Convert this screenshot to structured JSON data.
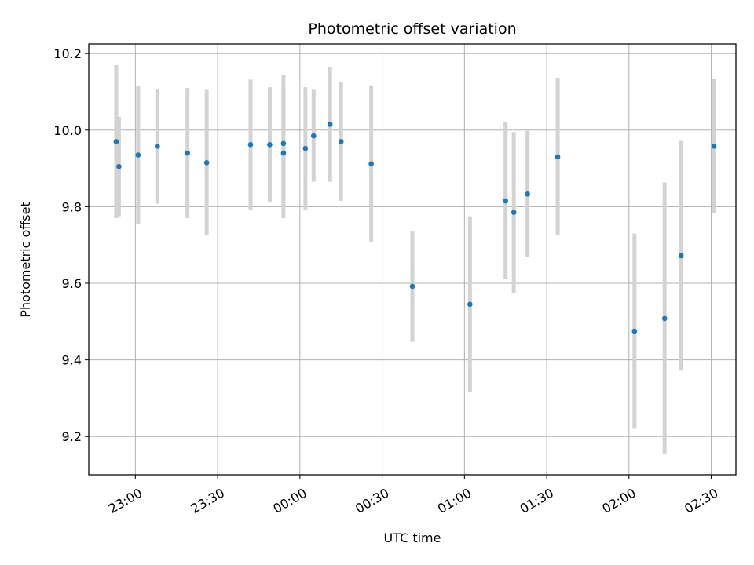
{
  "chart_data": {
    "type": "scatter",
    "title": "Photometric offset variation",
    "xlabel": "UTC time",
    "ylabel": "Photometric offset",
    "grid": true,
    "xlim": [
      "22:43",
      "02:39"
    ],
    "ylim": [
      9.1,
      10.225
    ],
    "x_ticks": [
      "23:00",
      "23:30",
      "00:00",
      "00:30",
      "01:00",
      "01:30",
      "02:00",
      "02:30"
    ],
    "y_ticks": [
      "9.2",
      "9.4",
      "9.6",
      "9.8",
      "10.0",
      "10.2"
    ],
    "colors": {
      "point": "#1f77b4",
      "errorbar": "#d3d3d3",
      "grid": "#b0b0b0"
    },
    "points": [
      {
        "time": "22:53",
        "value": 9.97,
        "err": 0.2
      },
      {
        "time": "22:54",
        "value": 9.905,
        "err": 0.13
      },
      {
        "time": "23:01",
        "value": 9.935,
        "err": 0.18
      },
      {
        "time": "23:08",
        "value": 9.958,
        "err": 0.15
      },
      {
        "time": "23:19",
        "value": 9.94,
        "err": 0.17
      },
      {
        "time": "23:26",
        "value": 9.915,
        "err": 0.19
      },
      {
        "time": "23:42",
        "value": 9.962,
        "err": 0.17
      },
      {
        "time": "23:49",
        "value": 9.962,
        "err": 0.15
      },
      {
        "time": "23:54",
        "value": 9.94,
        "err": 0.17
      },
      {
        "time": "23:54",
        "value": 9.965,
        "err": 0.18
      },
      {
        "time": "00:02",
        "value": 9.952,
        "err": 0.16
      },
      {
        "time": "00:05",
        "value": 9.985,
        "err": 0.12
      },
      {
        "time": "00:11",
        "value": 10.015,
        "err": 0.15
      },
      {
        "time": "00:15",
        "value": 9.97,
        "err": 0.155
      },
      {
        "time": "00:26",
        "value": 9.912,
        "err": 0.205
      },
      {
        "time": "00:41",
        "value": 9.592,
        "err": 0.145
      },
      {
        "time": "01:02",
        "value": 9.545,
        "err": 0.23
      },
      {
        "time": "01:15",
        "value": 9.815,
        "err": 0.205
      },
      {
        "time": "01:18",
        "value": 9.785,
        "err": 0.21
      },
      {
        "time": "01:23",
        "value": 9.833,
        "err": 0.165
      },
      {
        "time": "01:34",
        "value": 9.93,
        "err": 0.205
      },
      {
        "time": "02:02",
        "value": 9.475,
        "err": 0.255
      },
      {
        "time": "02:13",
        "value": 9.508,
        "err": 0.355
      },
      {
        "time": "02:19",
        "value": 9.672,
        "err": 0.3
      },
      {
        "time": "02:31",
        "value": 9.958,
        "err": 0.175
      }
    ]
  }
}
